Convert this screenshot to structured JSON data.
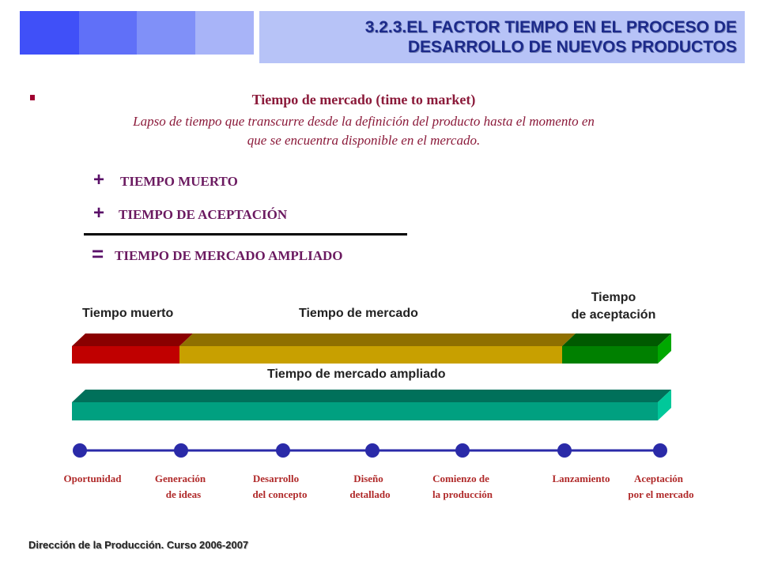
{
  "header": {
    "title_line1": "3.2.3.EL FACTOR TIEMPO EN EL PROCESO DE",
    "title_line2": "DESARROLLO DE NUEVOS PRODUCTOS",
    "block_colors": [
      "#4050f8",
      "#6070f8",
      "#8090f8",
      "#a8b4f8"
    ]
  },
  "definition": {
    "title": "Tiempo de mercado (time to market)",
    "body_line1": "Lapso de tiempo que transcurre desde la definición del producto hasta el momento en",
    "body_line2": "que se encuentra disponible en el mercado."
  },
  "equation": {
    "plus": "+",
    "equals": "=",
    "item1": "TIEMPO MUERTO",
    "item2": "TIEMPO DE ACEPTACIÓN",
    "result": "TIEMPO DE MERCADO AMPLIADO"
  },
  "bars": {
    "label_dead_time": "Tiempo muerto",
    "label_market_time": "Tiempo de mercado",
    "label_acceptance_line1": "Tiempo",
    "label_acceptance_line2": "de aceptación",
    "label_extended": "Tiempo de mercado ampliado",
    "colors": {
      "dead": "#c00000",
      "market": "#c8a000",
      "acceptance": "#008000",
      "extended": "#00a080"
    }
  },
  "timeline": {
    "stages": [
      {
        "line1": "Oportunidad",
        "line2": ""
      },
      {
        "line1": "Generación",
        "line2": "de ideas"
      },
      {
        "line1": "Desarrollo",
        "line2": "del concepto"
      },
      {
        "line1": "Diseño",
        "line2": "detallado"
      },
      {
        "line1": "Comienzo de",
        "line2": "la producción"
      },
      {
        "line1": "Lanzamiento",
        "line2": ""
      },
      {
        "line1": "Aceptación",
        "line2": "por el mercado"
      }
    ],
    "color": "#2a2aa8"
  },
  "footer": {
    "text": "Dirección de la Producción. Curso 2006-2007"
  }
}
